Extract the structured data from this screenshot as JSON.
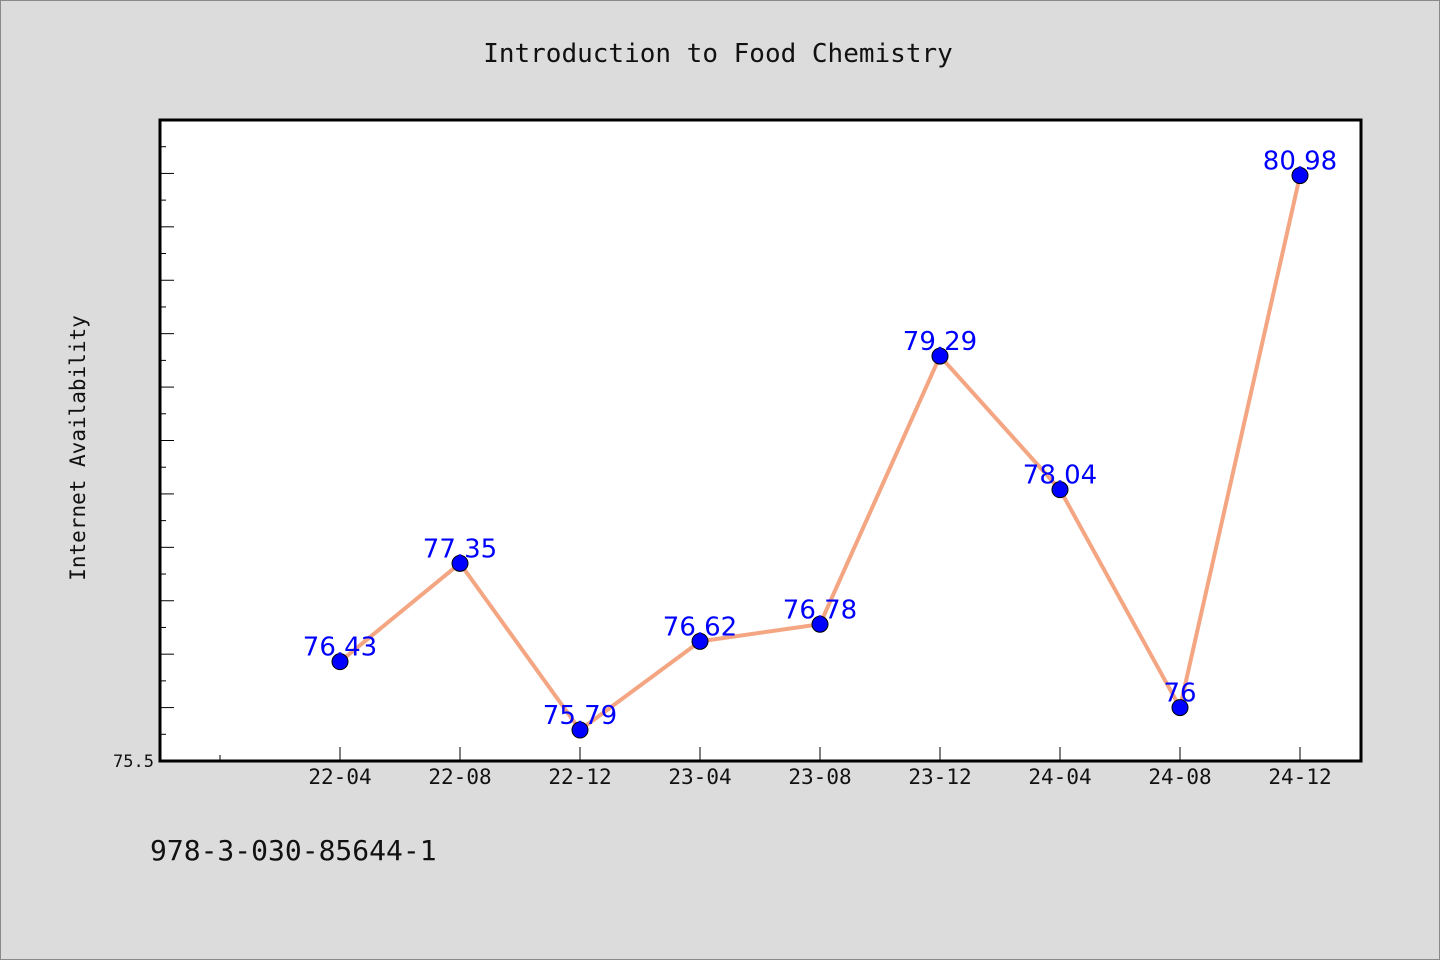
{
  "chart_data": {
    "type": "line",
    "title": "Introduction to Food Chemistry",
    "xlabel": "",
    "ylabel": "Internet Availability",
    "categories": [
      "22-04",
      "22-08",
      "22-12",
      "23-04",
      "23-08",
      "23-12",
      "24-04",
      "24-08",
      "24-12"
    ],
    "series": [
      {
        "values": [
          76.43,
          77.35,
          75.79,
          76.62,
          76.78,
          79.29,
          78.04,
          76.0,
          80.98
        ],
        "data_labels": [
          "76.43",
          "77.35",
          "75.79",
          "76.62",
          "76.78",
          "79.29",
          "78.04",
          "76",
          "80.98"
        ]
      }
    ],
    "ylim": [
      75.5,
      81.5
    ],
    "y_tick_labels": [
      "75.5"
    ],
    "grid": false,
    "line_color": "#f4a582",
    "marker_color": "#0000ff",
    "label_color": "#0000ff"
  },
  "footer": {
    "text": "978-3-030-85644-1"
  }
}
